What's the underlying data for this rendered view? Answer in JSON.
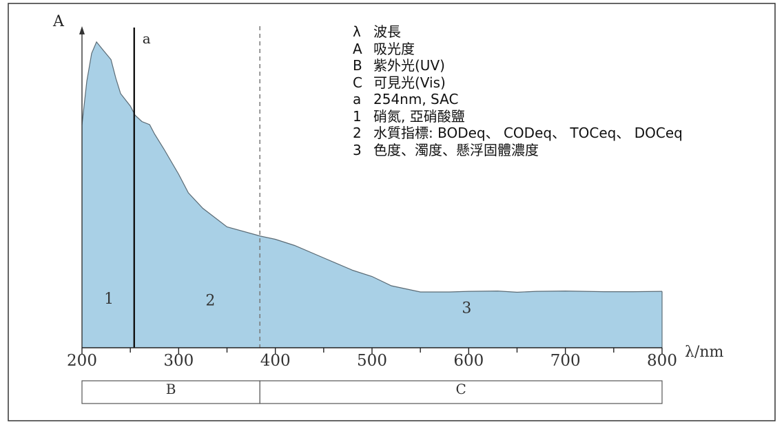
{
  "chart_data": {
    "type": "area",
    "title": "",
    "xlabel": "λ/nm",
    "ylabel": "A",
    "xlim": [
      200,
      800
    ],
    "ylim": [
      0,
      1
    ],
    "x_ticks": [
      200,
      300,
      400,
      500,
      600,
      700,
      800
    ],
    "x_tick_labels": [
      "200",
      "300",
      "400",
      "500",
      "600",
      "700",
      "800"
    ],
    "grid": false,
    "color": "#a9d0e6",
    "series": [
      {
        "x": [
          200,
          205,
          210,
          215,
          222,
          230,
          235,
          240,
          250,
          255,
          262,
          270,
          275,
          285,
          300,
          310,
          325,
          350,
          385,
          400,
          420,
          450,
          480,
          500,
          520,
          550,
          580,
          600,
          630,
          650,
          670,
          700,
          740,
          770,
          800
        ],
        "y": [
          0.72,
          0.86,
          0.95,
          0.987,
          0.96,
          0.93,
          0.87,
          0.82,
          0.78,
          0.75,
          0.73,
          0.72,
          0.69,
          0.64,
          0.56,
          0.5,
          0.45,
          0.39,
          0.36,
          0.35,
          0.33,
          0.29,
          0.25,
          0.23,
          0.2,
          0.18,
          0.18,
          0.182,
          0.183,
          0.179,
          0.182,
          0.183,
          0.181,
          0.181,
          0.182
        ]
      }
    ],
    "vertical_lines": [
      {
        "x": 254,
        "label": "a",
        "style": "solid"
      },
      {
        "x": 384,
        "label": "",
        "style": "dashed"
      }
    ],
    "region_labels": [
      {
        "label": "1",
        "x": 225,
        "y": 0.16
      },
      {
        "label": "2",
        "x": 330,
        "y": 0.155
      },
      {
        "label": "3",
        "x": 595,
        "y": 0.13
      }
    ],
    "bands": [
      {
        "label": "B",
        "from": 200,
        "to": 384
      },
      {
        "label": "C",
        "from": 384,
        "to": 800
      }
    ],
    "legend": [
      {
        "key": "λ",
        "text": "波長"
      },
      {
        "key": "A",
        "text": "吸光度"
      },
      {
        "key": "B",
        "text": "紫外光(UV)"
      },
      {
        "key": "C",
        "text": "可見光(Vis)"
      },
      {
        "key": "a",
        "text": "254nm, SAC"
      },
      {
        "key": "1",
        "text": "硝氮, 亞硝酸鹽"
      },
      {
        "key": "2",
        "text": "水質指標: BODeq、 CODeq、 TOCeq、 DOCeq"
      },
      {
        "key": "3",
        "text": "色度、濁度、懸浮固體濃度"
      }
    ]
  }
}
